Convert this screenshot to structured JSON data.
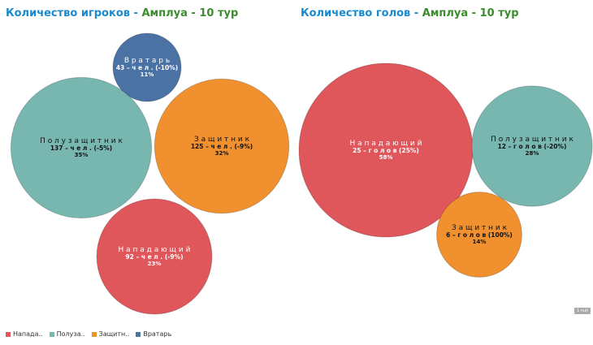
{
  "chart_data": [
    {
      "type": "bubble",
      "title_part1": "Количество игроков",
      "title_sep": " - ",
      "title_part2": "Амплуа - 10 тур",
      "items": [
        {
          "name": "Вратарь",
          "value": 43,
          "unit": "чел.",
          "change": "(-10%)",
          "share": "11%",
          "color": "#4a72a4"
        },
        {
          "name": "Полузащитник",
          "value": 137,
          "unit": "чел.",
          "change": "(-5%)",
          "share": "35%",
          "color": "#77b7b0"
        },
        {
          "name": "Защитник",
          "value": 125,
          "unit": "чел.",
          "change": "(-9%)",
          "share": "32%",
          "color": "#f0902e"
        },
        {
          "name": "Нападающий",
          "value": 92,
          "unit": "чел.",
          "change": "(-9%)",
          "share": "23%",
          "color": "#e0575b"
        }
      ]
    },
    {
      "type": "bubble",
      "title_part1": "Количество голов",
      "title_sep": " - ",
      "title_part2": "Амплуа - 10 тур",
      "items": [
        {
          "name": "Нападающий",
          "value": 25,
          "unit": "голов",
          "change": "(25%)",
          "share": "58%",
          "color": "#e0575b"
        },
        {
          "name": "Полузащитник",
          "value": 12,
          "unit": "голов",
          "change": "(-20%)",
          "share": "28%",
          "color": "#77b7b0"
        },
        {
          "name": "Защитник",
          "value": 6,
          "unit": "голов",
          "change": "(100%)",
          "share": "14%",
          "color": "#f0902e"
        }
      ]
    }
  ],
  "legend": [
    {
      "label": "Напада..",
      "color": "#e0575b"
    },
    {
      "label": "Полуза..",
      "color": "#77b7b0"
    },
    {
      "label": "Защитн..",
      "color": "#f0902e"
    },
    {
      "label": "Вратарь",
      "color": "#4a72a4"
    }
  ],
  "null_badge": "1 null"
}
